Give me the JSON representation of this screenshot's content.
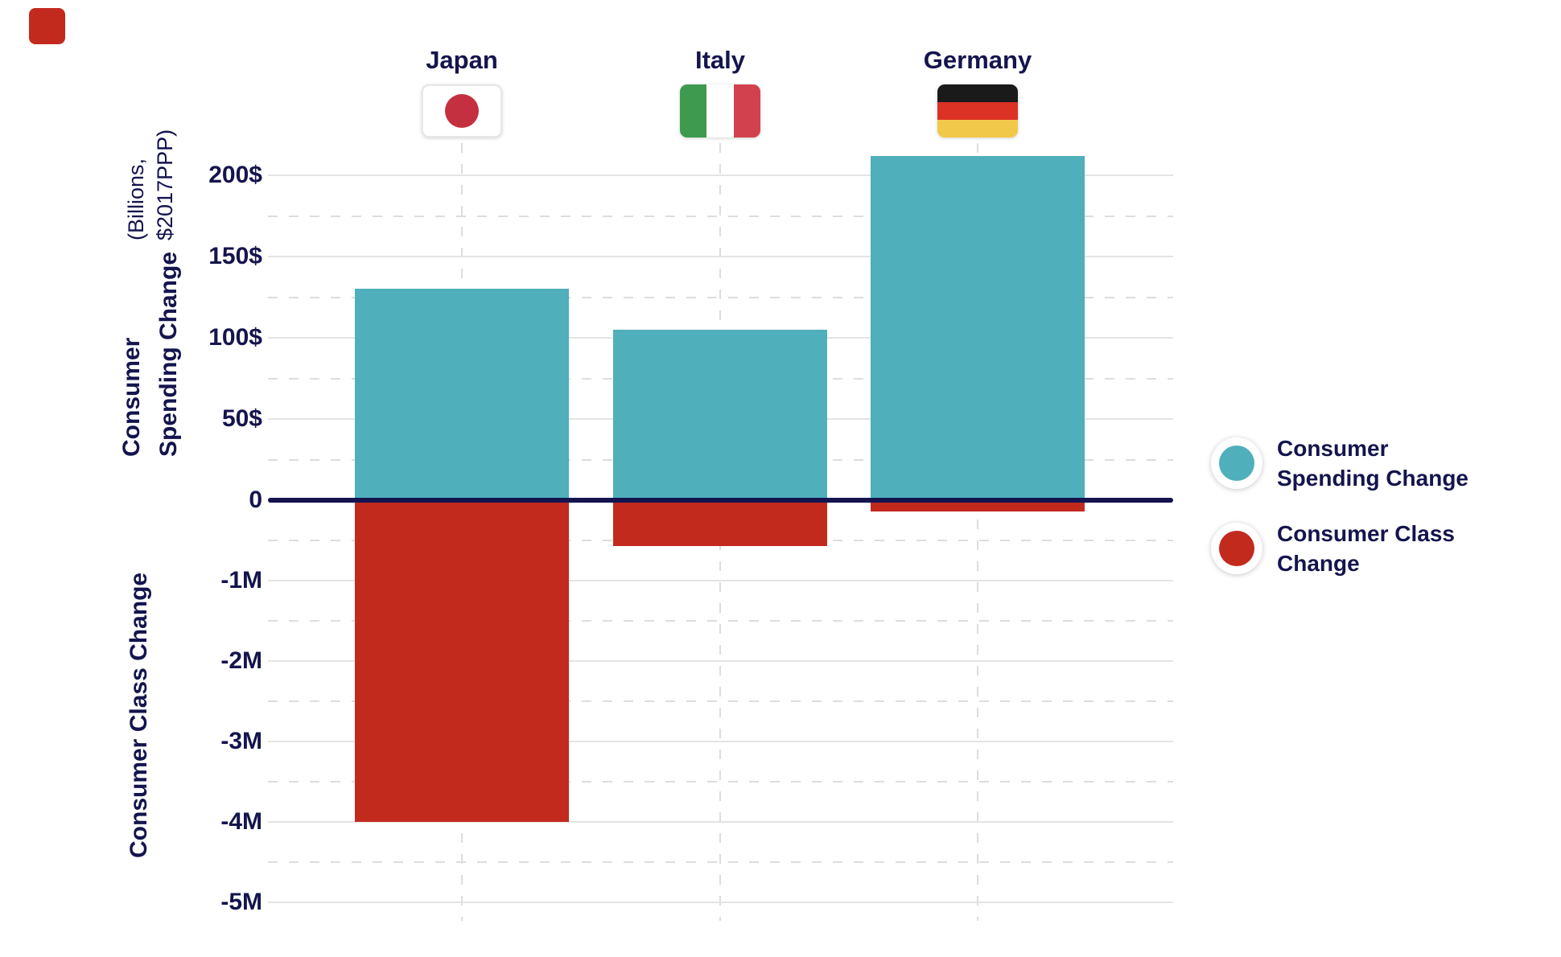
{
  "colors": {
    "navy": "#14144E",
    "teal": "#4FAFBA",
    "red": "#C32A1E",
    "grid": "#E4E4E4",
    "grid_dash": "#DDDDDD",
    "flag_border": "#E7E7E7",
    "japan_red": "#C4303F",
    "italy_green": "#3E9A4F",
    "italy_red": "#D2424E",
    "germany_black": "#1A1A1A",
    "germany_red": "#DC3125",
    "germany_gold": "#F2C84B"
  },
  "columns": [
    {
      "country": "Japan"
    },
    {
      "country": "Italy"
    },
    {
      "country": "Germany"
    }
  ],
  "y_axis_top": {
    "title": "Consumer Spending Change",
    "subtitle": "(Billions, $2017PPP)",
    "zero_label": "0",
    "ticks": [
      {
        "label": "200$",
        "value": 200
      },
      {
        "label": "150$",
        "value": 150
      },
      {
        "label": "100$",
        "value": 100
      },
      {
        "label": "50$",
        "value": 50
      }
    ]
  },
  "y_axis_bottom": {
    "title": "Consumer Class Change",
    "ticks": [
      {
        "label": "-1M",
        "value": -1
      },
      {
        "label": "-2M",
        "value": -2
      },
      {
        "label": "-3M",
        "value": -3
      },
      {
        "label": "-4M",
        "value": -4
      },
      {
        "label": "-5M",
        "value": -5
      }
    ]
  },
  "legend": {
    "items": [
      {
        "line1": "Consumer",
        "line2": "Spending Change",
        "color_key": "teal"
      },
      {
        "line1": "Consumer Class",
        "line2": "Change",
        "color_key": "red"
      }
    ]
  },
  "chart_data": {
    "type": "bar",
    "categories": [
      "Japan",
      "Italy",
      "Germany"
    ],
    "series": [
      {
        "name": "Consumer Spending Change",
        "unit": "Billions, $2017PPP",
        "color": "#4FAFBA",
        "values": [
          130,
          105,
          212
        ]
      },
      {
        "name": "Consumer Class Change",
        "unit": "Millions of people",
        "color": "#C32A1E",
        "values": [
          -4.0,
          -0.57,
          -0.14
        ]
      }
    ],
    "ylabel_top": "Consumer Spending Change (Billions, $2017PPP)",
    "ylabel_bottom": "Consumer Class Change",
    "ylim_top": [
      0,
      235
    ],
    "ylim_bottom": [
      -5.4,
      0
    ],
    "grid": "major solid, minor dashed, dashed vertical column guides",
    "legend_position": "right"
  }
}
